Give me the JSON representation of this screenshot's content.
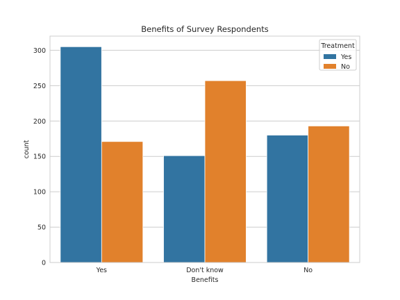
{
  "chart_data": {
    "type": "bar",
    "title": "Benefits of Survey Respondents",
    "xlabel": "Benefits",
    "ylabel": "count",
    "categories": [
      "Yes",
      "Don't know",
      "No"
    ],
    "series": [
      {
        "name": "Yes",
        "color": "#3274a1",
        "values": [
          305,
          151,
          180
        ]
      },
      {
        "name": "No",
        "color": "#e1812c",
        "values": [
          171,
          257,
          193
        ]
      }
    ],
    "ylim": [
      0,
      320
    ],
    "yticks": [
      0,
      50,
      100,
      150,
      200,
      250,
      300
    ],
    "grid": true,
    "legend": {
      "title": "Treatment",
      "position": "top-right"
    }
  }
}
